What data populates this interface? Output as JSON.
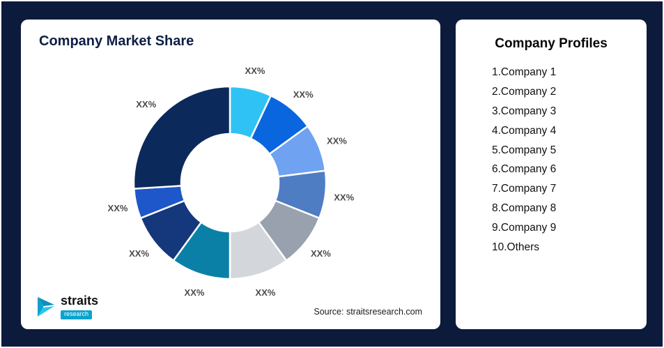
{
  "left_card": {
    "title": "Company Market Share",
    "source": "Source: straitsresearch.com",
    "logo": {
      "name": "straits",
      "sub": "research"
    }
  },
  "right_card": {
    "title": "Company Profiles",
    "items": [
      "1.Company 1",
      "2.Company 2",
      "3.Company 3",
      "4.Company 4",
      "5.Company 5",
      "6.Company 6",
      "7.Company 7",
      "8.Company 8",
      "9.Company 9",
      "10.Others"
    ]
  },
  "chart_data": {
    "type": "pie",
    "variant": "donut",
    "title": "Company Market Share",
    "legend_position": "none",
    "note": "All slice data labels display placeholder text XX%; slice values below are estimated from arc angles",
    "segments": [
      {
        "label": "XX%",
        "value": 7,
        "color": "#2EC3F4"
      },
      {
        "label": "XX%",
        "value": 8,
        "color": "#0A66DE"
      },
      {
        "label": "XX%",
        "value": 8,
        "color": "#6FA2F0"
      },
      {
        "label": "XX%",
        "value": 8,
        "color": "#4E7DC3"
      },
      {
        "label": "XX%",
        "value": 9,
        "color": "#98A1AD"
      },
      {
        "label": "XX%",
        "value": 10,
        "color": "#D3D6DB"
      },
      {
        "label": "XX%",
        "value": 10,
        "color": "#0B80A7"
      },
      {
        "label": "XX%",
        "value": 9,
        "color": "#15377C"
      },
      {
        "label": "XX%",
        "value": 5,
        "color": "#1E57C9"
      },
      {
        "label": "XX%",
        "value": 26,
        "color": "#0B2A5B"
      }
    ],
    "colors_matter": true,
    "background": "#0C1A3C"
  }
}
